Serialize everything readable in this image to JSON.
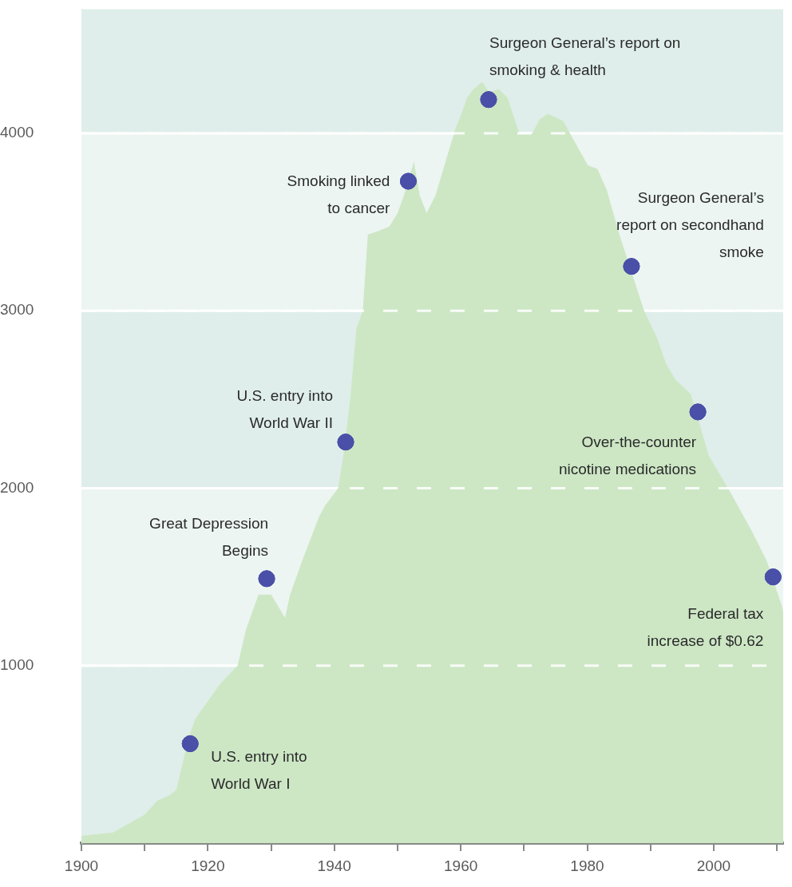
{
  "chart_data": {
    "type": "area",
    "xlim": [
      1900,
      2011
    ],
    "ylim": [
      0,
      4700
    ],
    "xticks": [
      1900,
      {
        "value": 1910,
        "label": null
      },
      1920,
      {
        "value": 1930,
        "label": null
      },
      1940,
      {
        "value": 1950,
        "label": null
      },
      1960,
      {
        "value": 1970,
        "label": null
      },
      1980,
      {
        "value": 1990,
        "label": null
      },
      2000,
      {
        "value": 2010,
        "label": null
      }
    ],
    "yticks": [
      1000,
      2000,
      3000,
      4000
    ],
    "grid": "y",
    "legend": false,
    "bands": [
      {
        "axis": "y",
        "from": 0,
        "to": 1000,
        "color": "#dfeeea"
      },
      {
        "axis": "y",
        "from": 1000,
        "to": 2000,
        "color": "#ecf5f2"
      },
      {
        "axis": "y",
        "from": 2000,
        "to": 3000,
        "color": "#dfeeea"
      },
      {
        "axis": "y",
        "from": 3000,
        "to": 4000,
        "color": "#ecf5f2"
      },
      {
        "axis": "y",
        "from": 4000,
        "to": 4700,
        "color": "#dfeeea"
      }
    ],
    "series": [
      {
        "type": "area",
        "color": "#cde7c5",
        "x": [
          1900,
          1905,
          1908,
          1910,
          1912,
          1914,
          1915,
          1916,
          1917,
          1918,
          1920,
          1922,
          1924.7,
          1926,
          1928,
          1930,
          1932.2,
          1933,
          1935,
          1937.6,
          1938.5,
          1940.6,
          1941.5,
          1942.5,
          1943.5,
          1944.5,
          1945.3,
          1947,
          1948.7,
          1950,
          1951,
          1952.6,
          1953.5,
          1954.6,
          1956,
          1958,
          1959.2,
          1960,
          1961,
          1962,
          1963.4,
          1964.5,
          1966,
          1967.4,
          1969.3,
          1971.3,
          1972.5,
          1973.8,
          1976.2,
          1978.2,
          1980.1,
          1981.6,
          1983.1,
          1985,
          1989,
          1991,
          1992.5,
          1994,
          1996.4,
          1999.2,
          2002.6,
          2006,
          2008.4,
          2010.8,
          2011
        ],
        "values": [
          40,
          60,
          120,
          160,
          240,
          270,
          300,
          450,
          600,
          700,
          800,
          900,
          1000,
          1200,
          1400,
          1400,
          1270,
          1400,
          1600,
          1840,
          1900,
          2000,
          2200,
          2500,
          2900,
          3000,
          3430,
          3450,
          3475,
          3550,
          3650,
          3840,
          3650,
          3550,
          3650,
          3890,
          4030,
          4100,
          4200,
          4250,
          4290,
          4230,
          4250,
          4200,
          3995,
          4000,
          4080,
          4110,
          4070,
          3940,
          3820,
          3800,
          3680,
          3440,
          3000,
          2850,
          2700,
          2610,
          2530,
          2185,
          1980,
          1760,
          1590,
          1335,
          1300
        ]
      },
      {
        "type": "scatter",
        "color": "#4a4fa8",
        "marker": "circle",
        "x": [
          1917.2,
          1929.3,
          1941.8,
          1951.7,
          1964.4,
          1987,
          1997.5,
          2009.4
        ],
        "values": [
          560,
          1490,
          2260,
          3730,
          4190,
          3250,
          2430,
          1500
        ]
      }
    ],
    "annotations": [
      {
        "text": "U.S. entry into\nWorld War I",
        "x": 1917.2,
        "y": 560
      },
      {
        "text": "Great Depression\nBegins",
        "x": 1929.3,
        "y": 1490
      },
      {
        "text": "U.S. entry into\nWorld War II",
        "x": 1941.8,
        "y": 2260
      },
      {
        "text": "Smoking linked\nto cancer",
        "x": 1951.7,
        "y": 3730
      },
      {
        "text": "Surgeon General’s report on\nsmoking & health",
        "x": 1964.4,
        "y": 4190
      },
      {
        "text": "Surgeon General’s\nreport on secondhand\nsmoke",
        "x": 1987,
        "y": 3250
      },
      {
        "text": "Over-the-counter\nnicotine medications",
        "x": 1997.5,
        "y": 2430
      },
      {
        "text": "Federal tax\nincrease of $0.62",
        "x": 2009.4,
        "y": 1500
      }
    ]
  }
}
